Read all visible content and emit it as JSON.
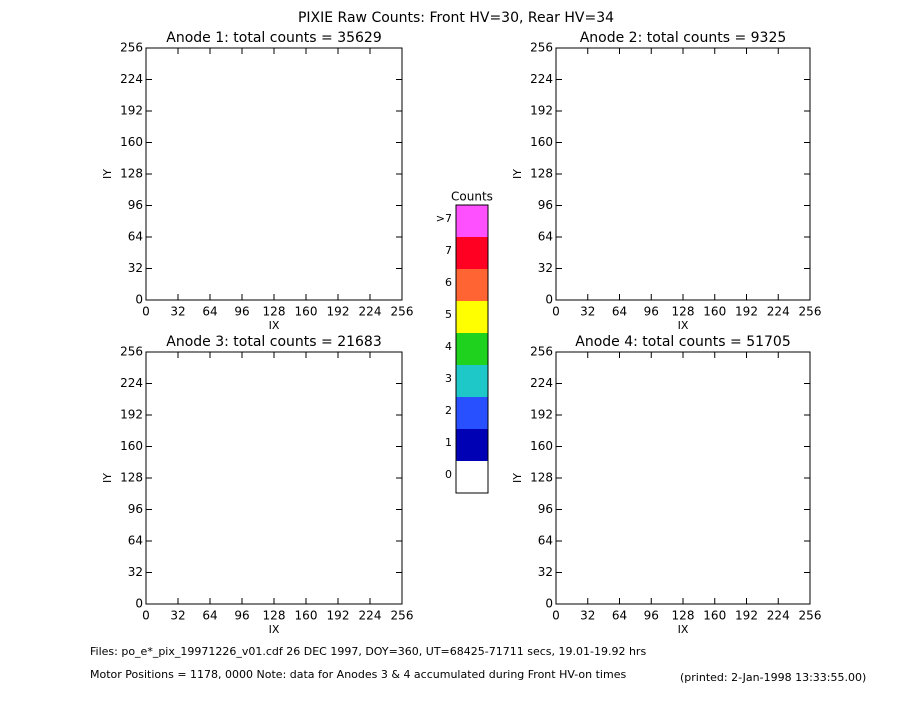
{
  "title": "PIXIE Raw Counts:  Front HV=30, Rear HV=34",
  "chart_data": [
    {
      "type": "heatmap",
      "title": "Anode 1: total counts = 35629",
      "xlabel": "IX",
      "ylabel": "IY",
      "xlim": [
        0,
        256
      ],
      "ylim": [
        0,
        256
      ],
      "xticks": [
        0,
        32,
        64,
        96,
        128,
        160,
        192,
        224,
        256
      ],
      "yticks": [
        0,
        32,
        64,
        96,
        128,
        160,
        192,
        224,
        256
      ]
    },
    {
      "type": "heatmap",
      "title": "Anode 2: total counts = 9325",
      "xlabel": "IX",
      "ylabel": "IY",
      "xlim": [
        0,
        256
      ],
      "ylim": [
        0,
        256
      ],
      "xticks": [
        0,
        32,
        64,
        96,
        128,
        160,
        192,
        224,
        256
      ],
      "yticks": [
        0,
        32,
        64,
        96,
        128,
        160,
        192,
        224,
        256
      ]
    },
    {
      "type": "heatmap",
      "title": "Anode 3: total counts = 21683",
      "xlabel": "IX",
      "ylabel": "IY",
      "xlim": [
        0,
        256
      ],
      "ylim": [
        0,
        256
      ],
      "xticks": [
        0,
        32,
        64,
        96,
        128,
        160,
        192,
        224,
        256
      ],
      "yticks": [
        0,
        32,
        64,
        96,
        128,
        160,
        192,
        224,
        256
      ]
    },
    {
      "type": "heatmap",
      "title": "Anode 4: total counts = 51705",
      "xlabel": "IX",
      "ylabel": "IY",
      "xlim": [
        0,
        256
      ],
      "ylim": [
        0,
        256
      ],
      "xticks": [
        0,
        32,
        64,
        96,
        128,
        160,
        192,
        224,
        256
      ],
      "yticks": [
        0,
        32,
        64,
        96,
        128,
        160,
        192,
        224,
        256
      ]
    }
  ],
  "colorbar": {
    "title": "Counts",
    "ticks": [
      0,
      1,
      2,
      3,
      4,
      5,
      6,
      7,
      {
        "value": 8,
        "label": ">7"
      }
    ],
    "colors": [
      "#ffffff",
      "#0000b4",
      "#2850ff",
      "#1ec8c8",
      "#1ed21e",
      "#ffff00",
      "#ff6432",
      "#ff0022",
      "#ff50ff"
    ]
  },
  "notes": [
    "Files: po_e*_pix_19971226_v01.cdf    26 DEC 1997, DOY=360, UT=68425-71711 secs, 19.01-19.92 hrs",
    "Motor Positions = 1178, 0000    Note: data for Anodes 3 & 4 accumulated during Front HV-on times",
    "(printed:  2-Jan-1998 13:33:55.00)"
  ]
}
